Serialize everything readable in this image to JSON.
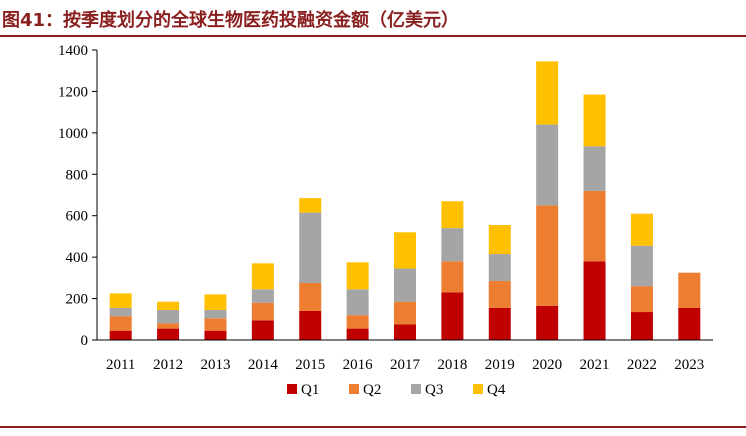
{
  "title": "图41：按季度划分的全球生物医药投融资金额（亿美元）",
  "colors": {
    "Q1": "#c00000",
    "Q2": "#ed7d31",
    "Q3": "#a5a5a5",
    "Q4": "#ffc000",
    "accent": "#8a1f1f"
  },
  "chart_data": {
    "type": "bar",
    "stacked": true,
    "categories": [
      "2011",
      "2012",
      "2013",
      "2014",
      "2015",
      "2016",
      "2017",
      "2018",
      "2019",
      "2020",
      "2021",
      "2022",
      "2023"
    ],
    "series": [
      {
        "name": "Q1",
        "values": [
          45,
          55,
          45,
          95,
          140,
          55,
          75,
          230,
          155,
          165,
          380,
          135,
          155
        ]
      },
      {
        "name": "Q2",
        "values": [
          70,
          25,
          60,
          85,
          135,
          65,
          110,
          150,
          130,
          485,
          340,
          125,
          170
        ]
      },
      {
        "name": "Q3",
        "values": [
          40,
          65,
          40,
          65,
          340,
          125,
          160,
          160,
          130,
          390,
          215,
          195,
          0
        ]
      },
      {
        "name": "Q4",
        "values": [
          70,
          40,
          75,
          125,
          70,
          130,
          175,
          130,
          140,
          305,
          250,
          155,
          0
        ]
      }
    ],
    "yticks": [
      "0",
      "200",
      "400",
      "600",
      "800",
      "1000",
      "1200",
      "1400"
    ],
    "ylim": [
      0,
      1400
    ],
    "legend_position": "bottom"
  }
}
